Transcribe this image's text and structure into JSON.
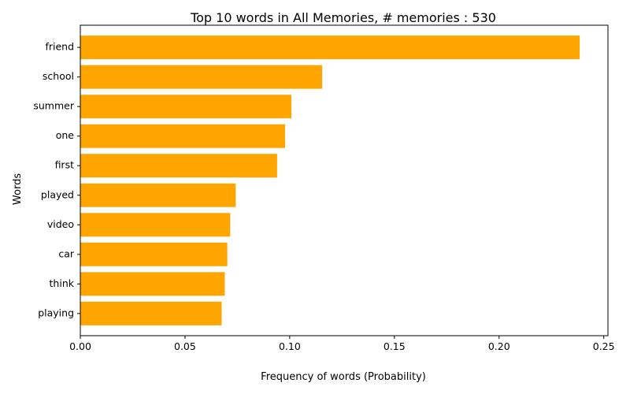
{
  "chart_data": {
    "type": "bar",
    "orientation": "horizontal",
    "title": "Top 10 words in All Memories, # memories : 530",
    "xlabel": "Frequency of words (Probability)",
    "ylabel": "Words",
    "categories": [
      "friend",
      "school",
      "summer",
      "one",
      "first",
      "played",
      "video",
      "car",
      "think",
      "playing"
    ],
    "values": [
      0.2385,
      0.1155,
      0.1008,
      0.0978,
      0.094,
      0.0742,
      0.0716,
      0.0702,
      0.069,
      0.0675
    ],
    "xlim": [
      0.0,
      0.252
    ],
    "xticks": [
      0.0,
      0.05,
      0.1,
      0.15,
      0.2,
      0.25
    ],
    "xtick_labels": [
      "0.00",
      "0.05",
      "0.10",
      "0.15",
      "0.20",
      "0.25"
    ],
    "grid": false,
    "legend": "none",
    "bar_color": "#ffa500"
  }
}
